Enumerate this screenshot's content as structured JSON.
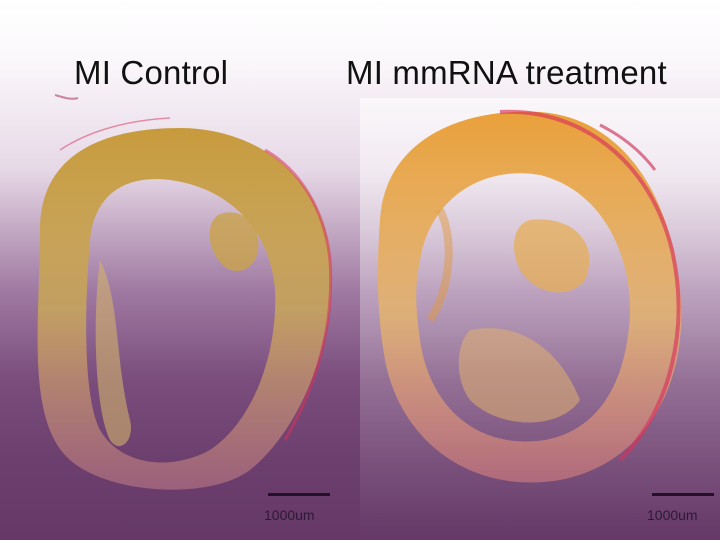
{
  "panels": [
    {
      "title": "MI Control",
      "scale_label": "1000um"
    },
    {
      "title": "MI mmRNA treatment",
      "scale_label": "1000um"
    }
  ],
  "colors": {
    "tissue_tan": "#c9a24a",
    "tissue_orange": "#e7a33e",
    "scar_red": "#d8325a",
    "background_purple": "#6c3f6e"
  }
}
